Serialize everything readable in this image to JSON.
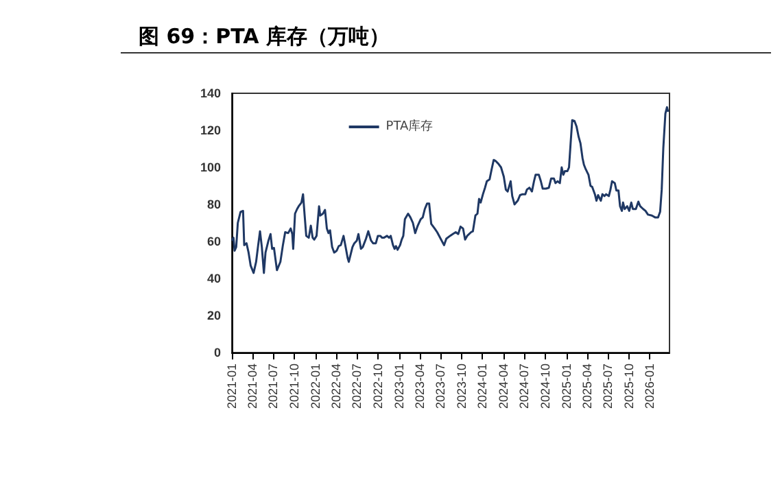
{
  "chart_data": {
    "type": "line",
    "title": "图 69：PTA 库存（万吨）",
    "x": [
      "2021-01-01",
      "2021-01-08",
      "2021-01-13",
      "2021-01-20",
      "2021-01-27",
      "2021-02-08",
      "2021-02-19",
      "2021-02-24",
      "2021-03-06",
      "2021-03-15",
      "2021-03-24",
      "2021-04-06",
      "2021-04-17",
      "2021-04-26",
      "2021-05-04",
      "2021-05-12",
      "2021-05-21",
      "2021-05-28",
      "2021-06-10",
      "2021-06-19",
      "2021-06-26",
      "2021-07-04",
      "2021-07-17",
      "2021-08-01",
      "2021-08-12",
      "2021-08-22",
      "2021-09-04",
      "2021-09-15",
      "2021-09-22",
      "2021-09-26",
      "2021-10-04",
      "2021-10-13",
      "2021-10-20",
      "2021-11-01",
      "2021-11-08",
      "2021-11-15",
      "2021-11-22",
      "2021-12-03",
      "2021-12-12",
      "2021-12-20",
      "2021-12-27",
      "2022-01-06",
      "2022-01-17",
      "2022-01-22",
      "2022-02-03",
      "2022-02-12",
      "2022-02-20",
      "2022-02-27",
      "2022-03-06",
      "2022-03-15",
      "2022-03-24",
      "2022-04-04",
      "2022-04-13",
      "2022-04-22",
      "2022-05-04",
      "2022-05-13",
      "2022-05-22",
      "2022-05-27",
      "2022-06-12",
      "2022-06-20",
      "2022-07-01",
      "2022-07-08",
      "2022-07-19",
      "2022-07-27",
      "2022-08-10",
      "2022-08-20",
      "2022-09-01",
      "2022-09-10",
      "2022-09-22",
      "2022-10-01",
      "2022-10-12",
      "2022-10-19",
      "2022-10-27",
      "2022-11-10",
      "2022-11-19",
      "2022-11-26",
      "2022-12-06",
      "2022-12-13",
      "2022-12-19",
      "2022-12-26",
      "2023-01-06",
      "2023-01-13",
      "2023-01-20",
      "2023-01-27",
      "2023-02-10",
      "2023-02-20",
      "2023-03-03",
      "2023-03-13",
      "2023-03-24",
      "2023-04-06",
      "2023-04-15",
      "2023-04-24",
      "2023-05-04",
      "2023-05-13",
      "2023-05-22",
      "2023-06-06",
      "2023-06-17",
      "2023-07-17",
      "2023-07-27",
      "2023-08-12",
      "2023-08-24",
      "2023-09-06",
      "2023-09-17",
      "2023-09-27",
      "2023-10-08",
      "2023-10-17",
      "2023-10-26",
      "2023-11-12",
      "2023-11-20",
      "2023-12-01",
      "2023-12-10",
      "2023-12-17",
      "2023-12-24",
      "2024-01-03",
      "2024-01-12",
      "2024-01-20",
      "2024-02-01",
      "2024-02-10",
      "2024-02-19",
      "2024-02-27",
      "2024-03-10",
      "2024-03-22",
      "2024-04-03",
      "2024-04-12",
      "2024-04-20",
      "2024-05-03",
      "2024-05-10",
      "2024-05-20",
      "2024-06-03",
      "2024-06-13",
      "2024-06-24",
      "2024-07-06",
      "2024-07-13",
      "2024-07-24",
      "2024-08-04",
      "2024-08-13",
      "2024-08-20",
      "2024-09-03",
      "2024-09-12",
      "2024-09-20",
      "2024-10-04",
      "2024-10-17",
      "2024-10-27",
      "2024-11-08",
      "2024-11-15",
      "2024-11-24",
      "2024-12-04",
      "2024-12-12",
      "2024-12-19",
      "2024-12-26",
      "2025-01-06",
      "2025-01-13",
      "2025-01-20",
      "2025-01-27",
      "2025-02-06",
      "2025-02-15",
      "2025-02-24",
      "2025-03-04",
      "2025-03-13",
      "2025-03-19",
      "2025-03-27",
      "2025-04-08",
      "2025-04-17",
      "2025-04-24",
      "2025-05-06",
      "2025-05-13",
      "2025-05-20",
      "2025-06-01",
      "2025-06-08",
      "2025-06-17",
      "2025-06-24",
      "2025-07-06",
      "2025-07-13",
      "2025-07-20",
      "2025-08-01",
      "2025-08-08",
      "2025-08-17",
      "2025-08-24",
      "2025-09-01",
      "2025-09-06",
      "2025-09-13",
      "2025-09-24",
      "2025-10-03",
      "2025-10-12",
      "2025-10-19",
      "2025-11-01",
      "2025-11-12",
      "2025-11-20",
      "2025-12-03",
      "2025-12-13",
      "2025-12-24",
      "2026-01-10",
      "2026-01-24",
      "2026-02-06",
      "2026-02-15",
      "2026-02-22",
      "2026-03-01",
      "2026-03-10",
      "2026-03-17",
      "2026-03-22"
    ],
    "series": [
      {
        "name": "PTA库存",
        "color": "#1f3864",
        "values": [
          60.5,
          62,
          55,
          57,
          70,
          76,
          76.5,
          58,
          59,
          54,
          47,
          43,
          49,
          58,
          65.5,
          57,
          43,
          54,
          60.5,
          64,
          56,
          56.5,
          44.5,
          49,
          58,
          65,
          64.5,
          67,
          64,
          56,
          75,
          77.5,
          79,
          81,
          85.5,
          74,
          63,
          62,
          68.5,
          62,
          61,
          63,
          79,
          74,
          75,
          77,
          67,
          64.5,
          66,
          57,
          54,
          55,
          57.5,
          58,
          63,
          57,
          51,
          49,
          57,
          59,
          60.5,
          64,
          56,
          57,
          61.5,
          65.5,
          60.5,
          59,
          59,
          63,
          63,
          62,
          62,
          63,
          62,
          63,
          58,
          56,
          57.5,
          55.5,
          58,
          61,
          63,
          72,
          75,
          73,
          70,
          64.5,
          68.5,
          72,
          73,
          77.5,
          80.5,
          80.5,
          69.5,
          67,
          65,
          58,
          61.5,
          63,
          64,
          65,
          64,
          68,
          67,
          61,
          63,
          65,
          65.5,
          74,
          75,
          83,
          81,
          85.5,
          89,
          92.5,
          93.5,
          99,
          104,
          103.5,
          102,
          100,
          95,
          88,
          87,
          92.5,
          84.5,
          80,
          82,
          85,
          85.5,
          85.5,
          88,
          89,
          87,
          92.5,
          96,
          96,
          92.5,
          88.5,
          88.5,
          89,
          94,
          94,
          91.5,
          92.5,
          91.5,
          100,
          96,
          98,
          98,
          100,
          113,
          125.5,
          125,
          122,
          116.5,
          113,
          105,
          101.5,
          99,
          96,
          90,
          89.5,
          85.5,
          82,
          85,
          82,
          85.5,
          84.5,
          85.5,
          84.5,
          88,
          92.5,
          91.5,
          87.5,
          87.5,
          79,
          76.5,
          81,
          77.5,
          79,
          76.5,
          81,
          77.5,
          77.5,
          81.5,
          79,
          77.5,
          76.5,
          74.5,
          74,
          73,
          73,
          76,
          88,
          110.5,
          129,
          132.5,
          130
        ]
      }
    ],
    "xlim": [
      "2021-01-01",
      "2026-03-28"
    ],
    "xticks": [
      {
        "value": "2021-01-01",
        "label": "2021-01"
      },
      {
        "value": "2021-04-01",
        "label": "2021-04"
      },
      {
        "value": "2021-07-01",
        "label": "2021-07"
      },
      {
        "value": "2021-10-01",
        "label": "2021-10"
      },
      {
        "value": "2022-01-01",
        "label": "2022-01"
      },
      {
        "value": "2022-04-01",
        "label": "2022-04"
      },
      {
        "value": "2022-07-01",
        "label": "2022-07"
      },
      {
        "value": "2022-10-01",
        "label": "2022-10"
      },
      {
        "value": "2023-01-01",
        "label": "2023-01"
      },
      {
        "value": "2023-04-01",
        "label": "2023-04"
      },
      {
        "value": "2023-07-01",
        "label": "2023-07"
      },
      {
        "value": "2023-10-01",
        "label": "2023-10"
      },
      {
        "value": "2024-01-01",
        "label": "2024-01"
      },
      {
        "value": "2024-04-01",
        "label": "2024-04"
      },
      {
        "value": "2024-07-01",
        "label": "2024-07"
      },
      {
        "value": "2024-10-01",
        "label": "2024-10"
      },
      {
        "value": "2025-01-01",
        "label": "2025-01"
      },
      {
        "value": "2025-04-01",
        "label": "2025-04"
      },
      {
        "value": "2025-07-01",
        "label": "2025-07"
      },
      {
        "value": "2025-10-01",
        "label": "2025-10"
      },
      {
        "value": "2026-01-01",
        "label": "2026-01"
      }
    ],
    "ylim": [
      0,
      140
    ],
    "yticks": [
      0,
      20,
      40,
      60,
      80,
      100,
      120,
      140
    ],
    "legend": "top",
    "grid": false,
    "marker": "none",
    "line_style": "solid"
  }
}
